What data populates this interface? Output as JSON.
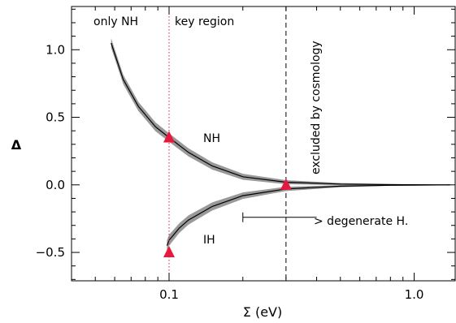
{
  "chart_data": {
    "type": "line",
    "title": "",
    "xlabel": "Σ (eV)",
    "ylabel": "Δ",
    "x_scale": "log",
    "xlim": [
      0.04,
      1.47
    ],
    "ylim": [
      -0.71,
      1.32
    ],
    "x_ticks": [
      {
        "value": 0.1,
        "label": "0.1"
      },
      {
        "value": 1.0,
        "label": "1.0"
      }
    ],
    "y_ticks": [
      {
        "value": 1.0,
        "label": "1.0"
      },
      {
        "value": 0.5,
        "label": "0.5"
      },
      {
        "value": 0.0,
        "label": "0.0"
      },
      {
        "value": -0.5,
        "label": "−0.5"
      }
    ],
    "grid": false,
    "series": [
      {
        "name": "NH",
        "color": "#000000",
        "band_color": "#999999",
        "points": [
          {
            "x": 0.058,
            "y": 1.05
          },
          {
            "x": 0.065,
            "y": 0.78
          },
          {
            "x": 0.075,
            "y": 0.58
          },
          {
            "x": 0.088,
            "y": 0.43
          },
          {
            "x": 0.1,
            "y": 0.35
          },
          {
            "x": 0.12,
            "y": 0.24
          },
          {
            "x": 0.15,
            "y": 0.14
          },
          {
            "x": 0.2,
            "y": 0.06
          },
          {
            "x": 0.3,
            "y": 0.02
          },
          {
            "x": 0.5,
            "y": 0.006
          },
          {
            "x": 0.8,
            "y": 0.002
          },
          {
            "x": 1.4,
            "y": 0.0
          }
        ],
        "band_halfwidth": [
          0.035,
          0.035,
          0.034,
          0.033,
          0.032,
          0.03,
          0.027,
          0.022,
          0.015,
          0.008,
          0.004,
          0.0
        ]
      },
      {
        "name": "IH",
        "color": "#000000",
        "band_color": "#999999",
        "points": [
          {
            "x": 0.098,
            "y": -0.45
          },
          {
            "x": 0.1,
            "y": -0.41
          },
          {
            "x": 0.11,
            "y": -0.32
          },
          {
            "x": 0.12,
            "y": -0.26
          },
          {
            "x": 0.15,
            "y": -0.16
          },
          {
            "x": 0.2,
            "y": -0.08
          },
          {
            "x": 0.3,
            "y": -0.03
          },
          {
            "x": 0.5,
            "y": -0.01
          },
          {
            "x": 0.8,
            "y": -0.003
          },
          {
            "x": 1.4,
            "y": 0.0
          }
        ],
        "band_halfwidth": [
          0.04,
          0.04,
          0.036,
          0.034,
          0.03,
          0.024,
          0.016,
          0.008,
          0.004,
          0.0
        ]
      }
    ],
    "markers": [
      {
        "x": 0.1,
        "y": 0.35,
        "color": "#e8173e"
      },
      {
        "x": 0.1,
        "y": -0.5,
        "color": "#e8173e"
      },
      {
        "x": 0.3,
        "y": 0.0,
        "color": "#e8173e"
      }
    ],
    "vlines": [
      {
        "x": 0.1,
        "style": "dotted",
        "color": "#e8173e"
      },
      {
        "x": 0.3,
        "style": "dashed",
        "color": "#000000"
      }
    ],
    "annotations": {
      "only_nh": "only NH",
      "key_region": "key region",
      "excluded": "excluded by cosmology",
      "nh_label": "NH",
      "ih_label": "IH",
      "degenerate": "> degenerate H."
    },
    "arrow": {
      "x_start": 0.2,
      "x_end": 0.4,
      "y": -0.24
    }
  }
}
